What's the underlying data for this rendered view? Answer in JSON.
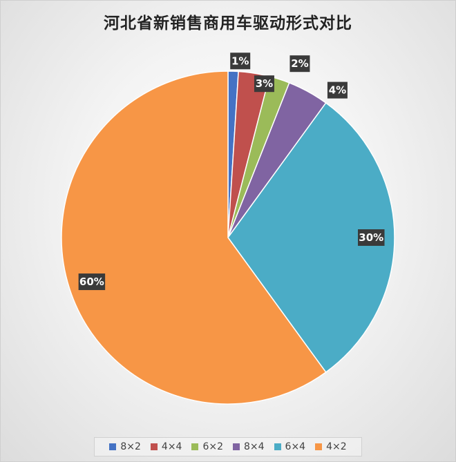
{
  "chart_data": {
    "type": "pie",
    "title": "河北省新销售商用车驱动形式对比",
    "legend_position": "bottom",
    "slices": [
      {
        "name": "8×2",
        "value": 1,
        "label": "1%",
        "color": "#4472C4"
      },
      {
        "name": "4×4",
        "value": 3,
        "label": "3%",
        "color": "#C0504D"
      },
      {
        "name": "6×2",
        "value": 2,
        "label": "2%",
        "color": "#9BBB59"
      },
      {
        "name": "8×4",
        "value": 4,
        "label": "4%",
        "color": "#8064A2"
      },
      {
        "name": "6×4",
        "value": 30,
        "label": "30%",
        "color": "#4BACC6"
      },
      {
        "name": "4×2",
        "value": 60,
        "label": "60%",
        "color": "#F79646"
      }
    ]
  },
  "colors": {
    "label_background": "#3a3a3a",
    "slice_border": "#ffffff"
  }
}
